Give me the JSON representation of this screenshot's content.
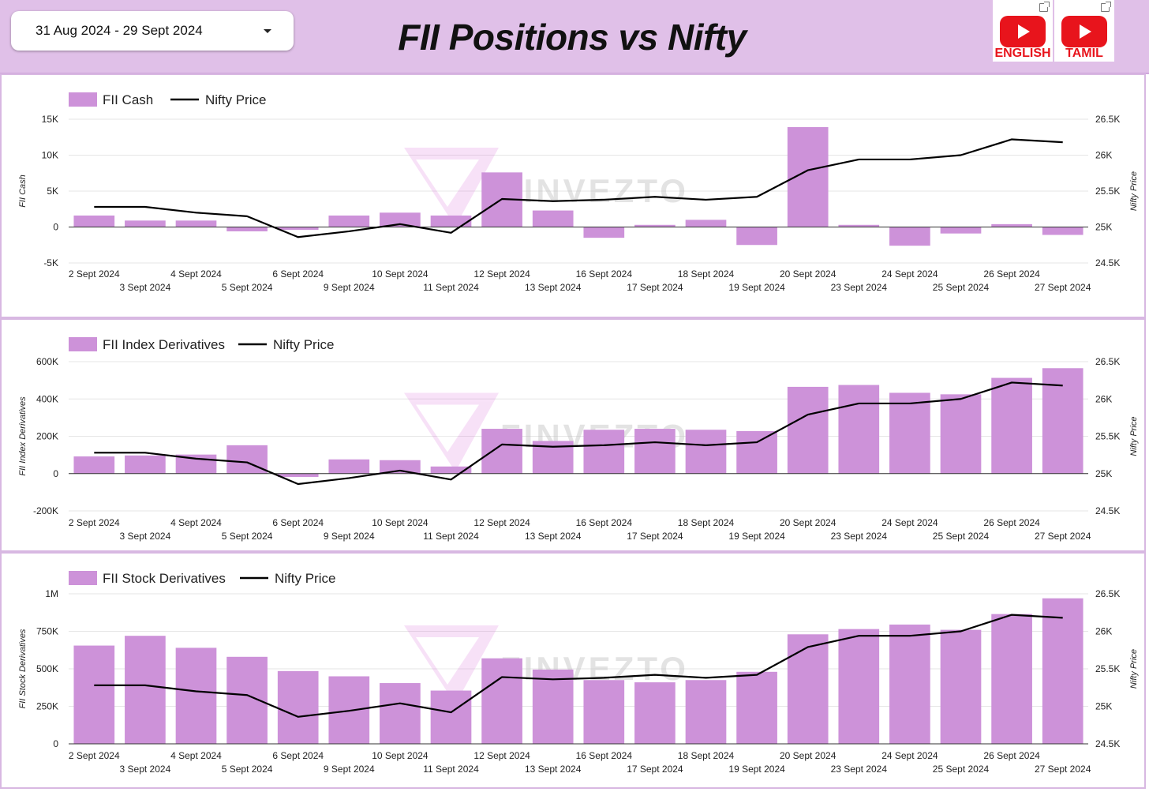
{
  "header": {
    "date_range": "31 Aug 2024 - 29 Sept 2024",
    "title": "FII Positions vs Nifty",
    "buttons": [
      {
        "label": "ENGLISH",
        "icon": "youtube-icon"
      },
      {
        "label": "TAMIL",
        "icon": "youtube-icon"
      }
    ]
  },
  "colors": {
    "bar": "#cd92d9",
    "line": "#000000",
    "header_bg": "#e0c0e8",
    "youtube_red": "#e8141c"
  },
  "chart_data": [
    {
      "type": "bar",
      "bar_series": "FII Cash",
      "line_series": "Nifty Price",
      "ylabel": "FII Cash",
      "y2label": "Nifty Price",
      "ylim": [
        -5000,
        15000
      ],
      "y2lim": [
        24500,
        26500
      ],
      "yticks": [
        "15K",
        "10K",
        "5K",
        "0",
        "-5K"
      ],
      "y2ticks": [
        "26.5K",
        "26K",
        "25.5K",
        "25K",
        "24.5K"
      ],
      "categories": [
        "2 Sept 2024",
        "3 Sept 2024",
        "4 Sept 2024",
        "5 Sept 2024",
        "6 Sept 2024",
        "9 Sept 2024",
        "10 Sept 2024",
        "11 Sept 2024",
        "12 Sept 2024",
        "13 Sept 2024",
        "16 Sept 2024",
        "17 Sept 2024",
        "18 Sept 2024",
        "19 Sept 2024",
        "20 Sept 2024",
        "23 Sept 2024",
        "24 Sept 2024",
        "25 Sept 2024",
        "26 Sept 2024",
        "27 Sept 2024"
      ],
      "bars": [
        1600,
        900,
        900,
        -600,
        -400,
        1600,
        2000,
        1600,
        7600,
        2300,
        -1500,
        300,
        1000,
        -2500,
        13900,
        300,
        -2600,
        -900,
        400,
        -1100
      ],
      "line": [
        25280,
        25280,
        25200,
        25150,
        24860,
        24940,
        25040,
        24920,
        25390,
        25360,
        25380,
        25420,
        25380,
        25420,
        25790,
        25940,
        25940,
        26000,
        26220,
        26180
      ],
      "watermark": "FINVEZTO"
    },
    {
      "type": "bar",
      "bar_series": "FII Index Derivatives",
      "line_series": "Nifty Price",
      "ylabel": "FII Index Derivatives",
      "y2label": "Nifty Price",
      "ylim": [
        -200000,
        600000
      ],
      "y2lim": [
        24500,
        26500
      ],
      "yticks": [
        "600K",
        "400K",
        "200K",
        "0",
        "-200K"
      ],
      "y2ticks": [
        "26.5K",
        "26K",
        "25.5K",
        "25K",
        "24.5K"
      ],
      "categories": [
        "2 Sept 2024",
        "3 Sept 2024",
        "4 Sept 2024",
        "5 Sept 2024",
        "6 Sept 2024",
        "9 Sept 2024",
        "10 Sept 2024",
        "11 Sept 2024",
        "12 Sept 2024",
        "13 Sept 2024",
        "16 Sept 2024",
        "17 Sept 2024",
        "18 Sept 2024",
        "19 Sept 2024",
        "20 Sept 2024",
        "23 Sept 2024",
        "24 Sept 2024",
        "25 Sept 2024",
        "26 Sept 2024",
        "27 Sept 2024"
      ],
      "bars": [
        92000,
        97000,
        102000,
        152000,
        -18000,
        76000,
        72000,
        38000,
        240000,
        175000,
        235000,
        240000,
        235000,
        228000,
        465000,
        475000,
        433000,
        425000,
        513000,
        565000
      ],
      "line": [
        25280,
        25280,
        25200,
        25150,
        24860,
        24940,
        25040,
        24920,
        25390,
        25360,
        25380,
        25420,
        25380,
        25420,
        25790,
        25940,
        25940,
        26000,
        26220,
        26180
      ],
      "watermark": "FINVEZTO"
    },
    {
      "type": "bar",
      "bar_series": "FII Stock Derivatives",
      "line_series": "Nifty Price",
      "ylabel": "FII Stock Derivatives",
      "y2label": "Nifty Price",
      "ylim": [
        0,
        1000000
      ],
      "y2lim": [
        24500,
        26500
      ],
      "yticks": [
        "1M",
        "750K",
        "500K",
        "250K",
        "0"
      ],
      "y2ticks": [
        "26.5K",
        "26K",
        "25.5K",
        "25K",
        "24.5K"
      ],
      "categories": [
        "2 Sept 2024",
        "3 Sept 2024",
        "4 Sept 2024",
        "5 Sept 2024",
        "6 Sept 2024",
        "9 Sept 2024",
        "10 Sept 2024",
        "11 Sept 2024",
        "12 Sept 2024",
        "13 Sept 2024",
        "16 Sept 2024",
        "17 Sept 2024",
        "18 Sept 2024",
        "19 Sept 2024",
        "20 Sept 2024",
        "23 Sept 2024",
        "24 Sept 2024",
        "25 Sept 2024",
        "26 Sept 2024",
        "27 Sept 2024"
      ],
      "bars": [
        655000,
        720000,
        640000,
        580000,
        485000,
        450000,
        405000,
        355000,
        570000,
        495000,
        425000,
        410000,
        425000,
        480000,
        730000,
        765000,
        795000,
        760000,
        865000,
        970000
      ],
      "line": [
        25280,
        25280,
        25200,
        25150,
        24860,
        24940,
        25040,
        24920,
        25390,
        25360,
        25380,
        25420,
        25380,
        25420,
        25790,
        25940,
        25940,
        26000,
        26220,
        26180
      ],
      "watermark": "FINVEZTO"
    }
  ]
}
